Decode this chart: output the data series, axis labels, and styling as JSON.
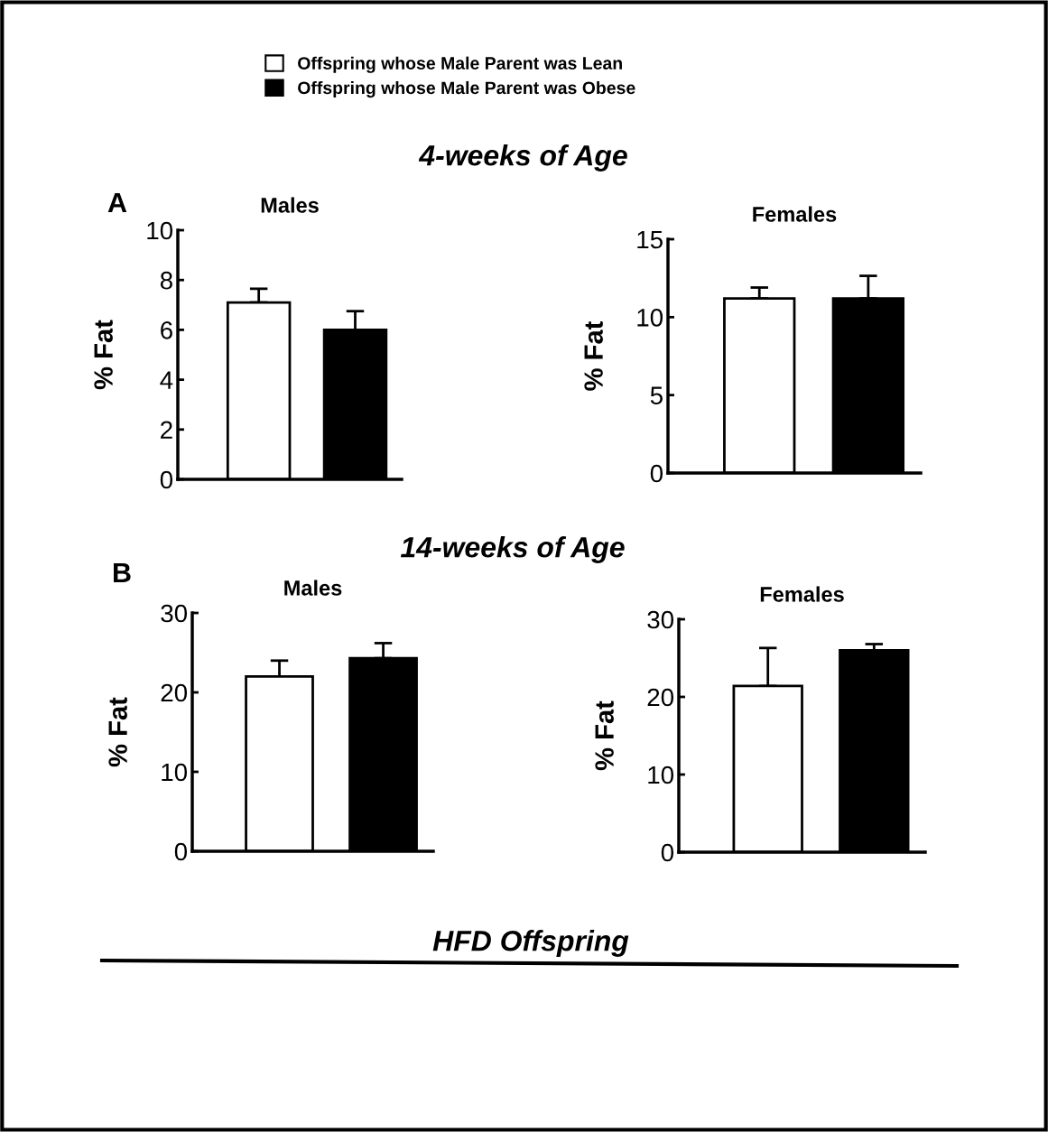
{
  "chart_data": [
    {
      "type": "bar",
      "title": "Males",
      "ylabel": "% Fat",
      "categories": [
        null
      ],
      "ylim": [
        0,
        10
      ],
      "yticks": [
        0,
        2,
        4,
        6,
        8,
        10
      ],
      "grid": false,
      "legend": "top",
      "annotations": [
        "4-weeks of Age",
        "A"
      ],
      "series": [
        {
          "name": "Offspring whose Male Parent was Lean",
          "color": "#ffffff",
          "values": [
            7.1
          ],
          "errors": [
            [
              7.1,
              7.65
            ]
          ]
        },
        {
          "name": "Offspring whose Male Parent was Obese",
          "color": "#000000",
          "values": [
            6.0
          ],
          "errors": [
            [
              6.0,
              6.75
            ]
          ]
        }
      ]
    },
    {
      "type": "bar",
      "title": "Females",
      "ylabel": "% Fat",
      "categories": [
        null
      ],
      "ylim": [
        0,
        15
      ],
      "yticks": [
        0,
        5,
        10,
        15
      ],
      "grid": false,
      "series": [
        {
          "color": "#ffffff",
          "values": [
            11.2
          ],
          "errors": [
            [
              11.2,
              11.9
            ]
          ]
        },
        {
          "color": "#000000",
          "values": [
            11.2
          ],
          "errors": [
            [
              11.2,
              12.65
            ]
          ]
        }
      ]
    },
    {
      "type": "bar",
      "title": "Males",
      "ylabel": "% Fat",
      "categories": [
        null
      ],
      "ylim": [
        0,
        30
      ],
      "yticks": [
        0,
        10,
        20,
        30
      ],
      "grid": false,
      "annotations": [
        "14-weeks of Age",
        "B",
        "HFD Offspring"
      ],
      "series": [
        {
          "color": "#ffffff",
          "values": [
            22.0
          ],
          "errors": [
            [
              22.0,
              24.0
            ]
          ]
        },
        {
          "color": "#000000",
          "values": [
            24.3
          ],
          "errors": [
            [
              24.3,
              26.2
            ]
          ]
        }
      ]
    },
    {
      "type": "bar",
      "title": "Females",
      "ylabel": "% Fat",
      "categories": [
        null
      ],
      "ylim": [
        0,
        30
      ],
      "yticks": [
        0,
        10,
        20,
        30
      ],
      "grid": false,
      "series": [
        {
          "color": "#ffffff",
          "values": [
            21.4
          ],
          "errors": [
            [
              21.4,
              26.3
            ]
          ]
        },
        {
          "color": "#000000",
          "values": [
            26.0
          ],
          "errors": [
            [
              26.0,
              26.8
            ]
          ]
        }
      ]
    }
  ]
}
